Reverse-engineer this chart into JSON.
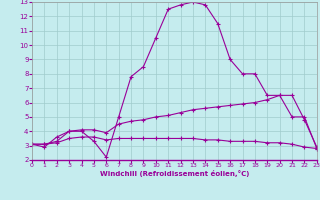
{
  "title": "",
  "xlabel": "Windchill (Refroidissement éolien,°C)",
  "ylabel": "",
  "bg_color": "#c5ecee",
  "line_color": "#990099",
  "grid_color": "#a0cccc",
  "xlim": [
    0,
    23
  ],
  "ylim": [
    2,
    13
  ],
  "xticks": [
    0,
    1,
    2,
    3,
    4,
    5,
    6,
    7,
    8,
    9,
    10,
    11,
    12,
    13,
    14,
    15,
    16,
    17,
    18,
    19,
    20,
    21,
    22,
    23
  ],
  "yticks": [
    2,
    3,
    4,
    5,
    6,
    7,
    8,
    9,
    10,
    11,
    12,
    13
  ],
  "curve1_x": [
    0,
    1,
    2,
    3,
    4,
    5,
    6,
    7,
    8,
    9,
    10,
    11,
    12,
    13,
    14,
    15,
    16,
    17,
    18,
    19,
    20,
    21,
    22,
    23
  ],
  "curve1_y": [
    3.1,
    2.9,
    3.6,
    4.0,
    4.0,
    3.3,
    2.2,
    5.0,
    7.8,
    8.5,
    10.5,
    12.5,
    12.8,
    13.0,
    12.8,
    11.5,
    9.0,
    8.0,
    8.0,
    6.5,
    6.5,
    5.0,
    5.0,
    2.8
  ],
  "curve2_x": [
    0,
    1,
    2,
    3,
    4,
    5,
    6,
    7,
    8,
    9,
    10,
    11,
    12,
    13,
    14,
    15,
    16,
    17,
    18,
    19,
    20,
    21,
    22,
    23
  ],
  "curve2_y": [
    3.1,
    3.1,
    3.3,
    4.0,
    4.1,
    4.1,
    3.9,
    4.5,
    4.7,
    4.8,
    5.0,
    5.1,
    5.3,
    5.5,
    5.6,
    5.7,
    5.8,
    5.9,
    6.0,
    6.2,
    6.5,
    6.5,
    4.8,
    2.9
  ],
  "curve3_x": [
    0,
    1,
    2,
    3,
    4,
    5,
    6,
    7,
    8,
    9,
    10,
    11,
    12,
    13,
    14,
    15,
    16,
    17,
    18,
    19,
    20,
    21,
    22,
    23
  ],
  "curve3_y": [
    3.1,
    3.1,
    3.2,
    3.5,
    3.6,
    3.6,
    3.4,
    3.5,
    3.5,
    3.5,
    3.5,
    3.5,
    3.5,
    3.5,
    3.4,
    3.4,
    3.3,
    3.3,
    3.3,
    3.2,
    3.2,
    3.1,
    2.9,
    2.8
  ]
}
